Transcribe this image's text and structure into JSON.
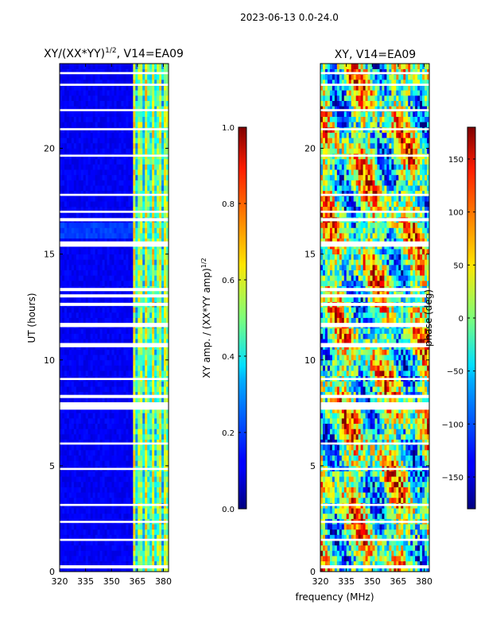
{
  "suptitle": "2023-06-13 0.0-24.0",
  "xlabel": "frequency (MHz)",
  "chart_data": [
    {
      "type": "heatmap",
      "title_main": "XY/(XX*YY)",
      "title_sup": "1/2",
      "title_rest": ", V14=EA09",
      "xlabel": "frequency (MHz)",
      "ylabel": "UT (hours)",
      "xlim": [
        320,
        383
      ],
      "ylim": [
        0,
        24
      ],
      "xticks": [
        320,
        335,
        350,
        365,
        380
      ],
      "yticks": [
        0,
        5,
        10,
        15,
        20
      ],
      "colorbar": {
        "label_main": "XY amp. / (XX*YY amp)",
        "label_sup": "1/2",
        "range": [
          0.0,
          1.0
        ],
        "ticks": [
          "0.0",
          "0.2",
          "0.4",
          "0.6",
          "0.8",
          "1.0"
        ],
        "colormap": "jet"
      }
    },
    {
      "type": "heatmap",
      "title": "XY, V14=EA09",
      "xlabel": "frequency (MHz)",
      "ylabel": "",
      "xlim": [
        320,
        383
      ],
      "ylim": [
        0,
        24
      ],
      "xticks": [
        320,
        335,
        350,
        365,
        380
      ],
      "yticks": [
        0,
        5,
        10,
        15,
        20
      ],
      "colorbar": {
        "label": "phase (deg)",
        "range": [
          -180,
          180
        ],
        "ticks": [
          "−150",
          "−100",
          "−50",
          "0",
          "50",
          "100",
          "150"
        ],
        "tick_values": [
          -150,
          -100,
          -50,
          0,
          50,
          100,
          150
        ],
        "colormap": "jet"
      }
    }
  ],
  "flag_gaps_hours": [
    [
      0.15,
      0.3
    ],
    [
      1.45,
      1.55
    ],
    [
      2.3,
      2.4
    ],
    [
      3.1,
      3.2
    ],
    [
      4.8,
      4.9
    ],
    [
      6.0,
      6.1
    ],
    [
      7.65,
      8.0
    ],
    [
      8.2,
      8.35
    ],
    [
      9.05,
      9.15
    ],
    [
      10.6,
      10.8
    ],
    [
      11.55,
      11.75
    ],
    [
      12.55,
      12.7
    ],
    [
      12.95,
      13.1
    ],
    [
      13.25,
      13.4
    ],
    [
      15.35,
      15.6
    ],
    [
      16.55,
      16.7
    ],
    [
      16.95,
      17.05
    ],
    [
      17.75,
      17.85
    ],
    [
      19.6,
      19.7
    ],
    [
      20.85,
      20.95
    ],
    [
      21.75,
      21.85
    ],
    [
      22.95,
      23.05
    ],
    [
      23.5,
      23.6
    ]
  ]
}
